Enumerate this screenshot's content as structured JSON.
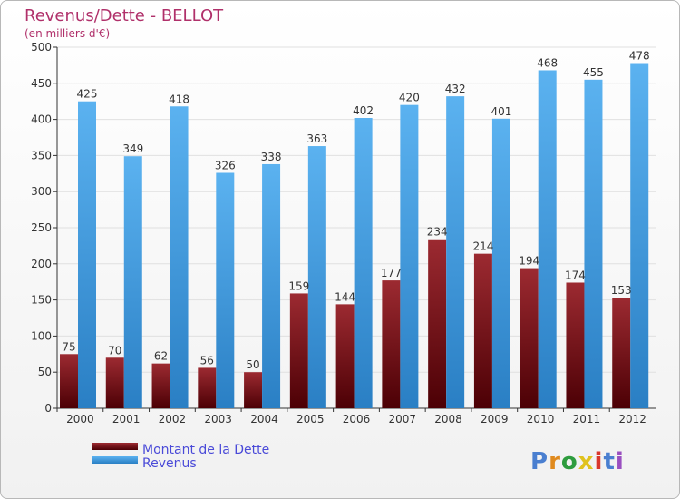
{
  "chart_data": {
    "type": "bar",
    "title": "Revenus/Dette - BELLOT",
    "subtitle": "(en milliers d'€)",
    "categories": [
      "2000",
      "2001",
      "2002",
      "2003",
      "2004",
      "2005",
      "2006",
      "2007",
      "2008",
      "2009",
      "2010",
      "2011",
      "2012"
    ],
    "series": [
      {
        "name": "Montant de la Dette",
        "color": "#7a0f14",
        "values": [
          75,
          70,
          62,
          56,
          50,
          159,
          144,
          177,
          234,
          214,
          194,
          174,
          153
        ]
      },
      {
        "name": "Revenus",
        "color": "#3f9de6",
        "values": [
          425,
          349,
          418,
          326,
          338,
          363,
          402,
          420,
          432,
          401,
          468,
          455,
          478
        ]
      }
    ],
    "ylim": [
      0,
      500
    ],
    "yticks": [
      0,
      50,
      100,
      150,
      200,
      250,
      300,
      350,
      400,
      450,
      500
    ],
    "grid": true,
    "legend_position": "bottom-left"
  },
  "branding": {
    "logo_text": "Proxiti",
    "logo_colors": [
      "#4a7fd0",
      "#e08a1e",
      "#2e9c3e",
      "#e0c21e",
      "#d9362b",
      "#4a7fd0",
      "#9a4fc0"
    ]
  }
}
